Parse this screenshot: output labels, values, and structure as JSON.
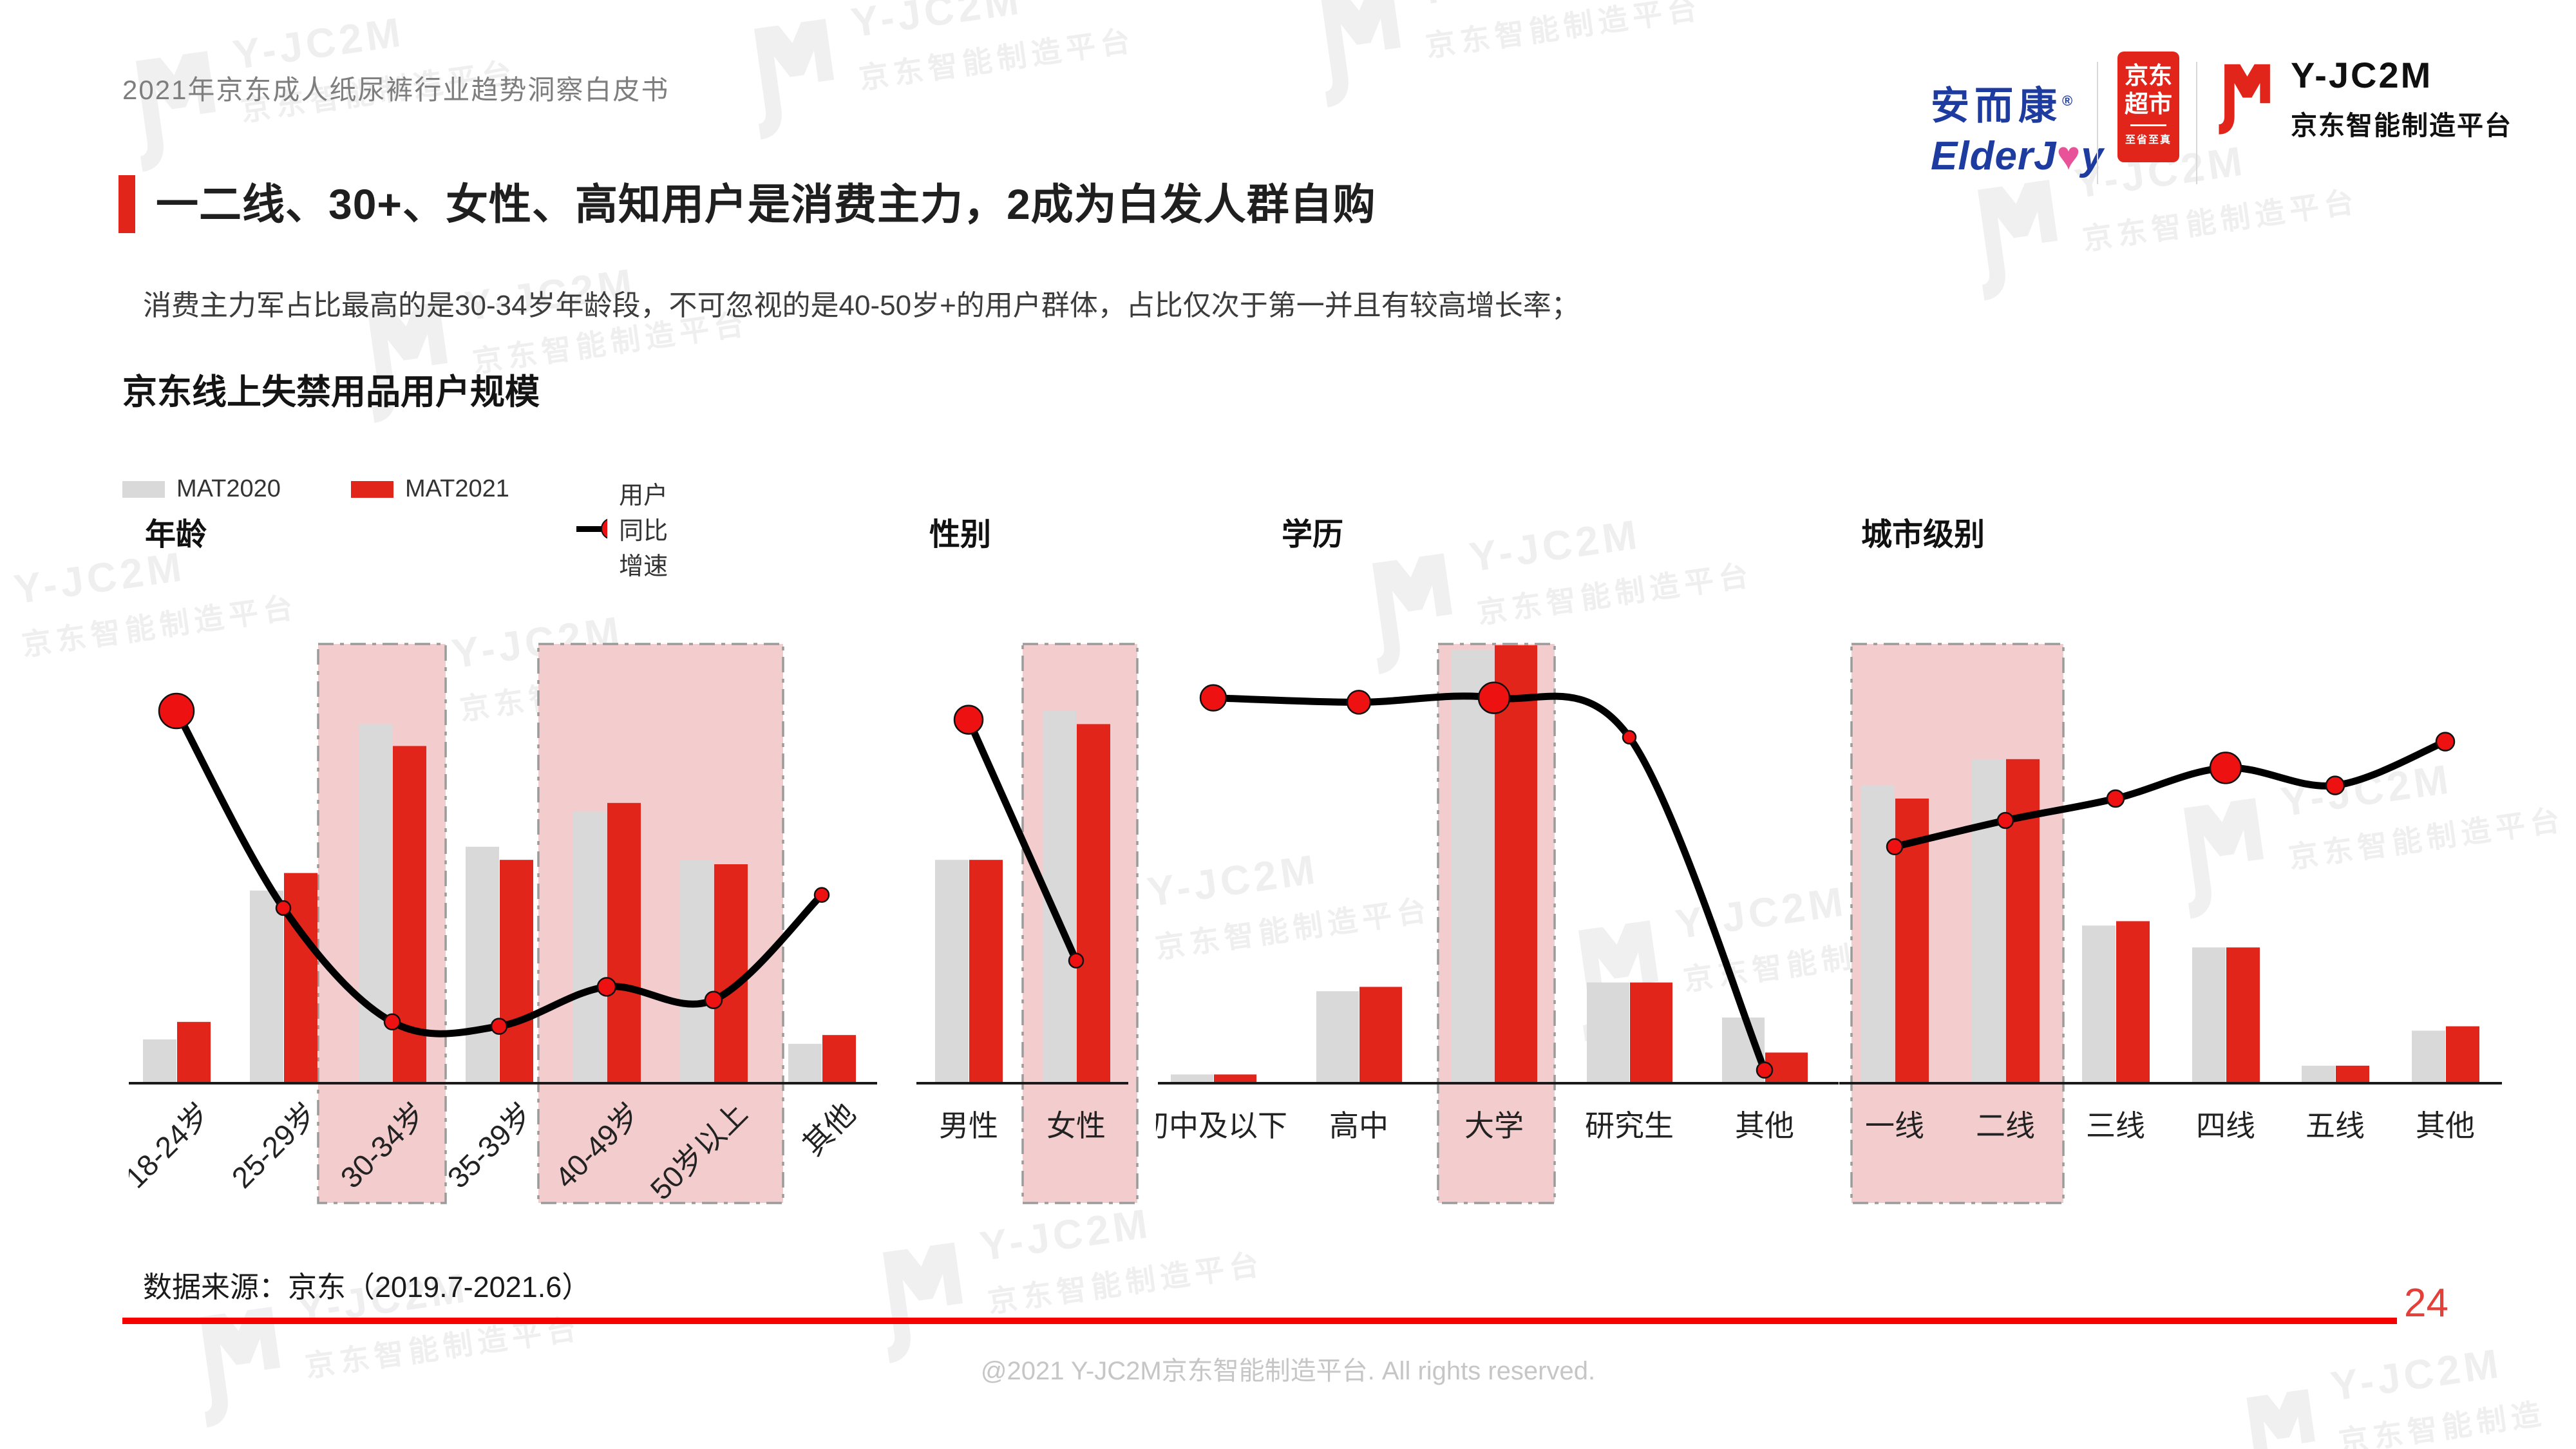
{
  "page": {
    "header": "2021年京东成人纸尿裤行业趋势洞察白皮书",
    "title": "一二线、30+、女性、高知用户是消费主力，2成为白发人群自购",
    "subtitle": "消费主力军占比最高的是30-34岁年龄段，不可忽视的是40-50岁+的用户群体，占比仅次于第一并且有较高增长率；",
    "section_title": "京东线上失禁用品用户规模",
    "source": "数据来源：京东（2019.7-2021.6）",
    "copyright": "@2021 Y-JC2M京东智能制造平台. All rights reserved.",
    "page_number": "24"
  },
  "logos": {
    "elderjoy": {
      "cn": "安而康",
      "reg": "®",
      "en_prefix": "ElderJ",
      "heart": "♥",
      "en_suffix": "y"
    },
    "jd_market": {
      "line1": "京东",
      "line2": "超市",
      "tagline": "至省至真"
    },
    "yjc2m": {
      "name": "Y-JC2M",
      "subtitle": "京东智能制造平台"
    }
  },
  "watermark": {
    "brand": "Y-JC2M",
    "text": "京东智能制造平台"
  },
  "legend": [
    {
      "label": "MAT2020",
      "type": "swatch",
      "color": "#d9d9d9"
    },
    {
      "label": "MAT2021",
      "type": "swatch",
      "color": "#e1251b"
    },
    {
      "label": "用户同比增速",
      "type": "line-dot",
      "line_color": "#000000",
      "dot_color": "#ee1111"
    }
  ],
  "colors": {
    "bar_2020": "#d9d9d9",
    "bar_2021": "#e1251b",
    "growth_line": "#000000",
    "growth_dot": "#ee1111",
    "highlight_band_fill": "#f3cdcd",
    "highlight_band_border": "#9b9b9b",
    "axis": "#1a1a1a",
    "accent_red": "#e1251b"
  },
  "chart_note": "Original figure shows no numeric axis labels; all values are estimated as percent of plot height read from the image.",
  "chart_data": [
    {
      "id": "age",
      "type": "bar+line",
      "title": "年龄",
      "categories": [
        "18-24岁",
        "25-29岁",
        "30-34岁",
        "35-39岁",
        "40-49岁",
        "50岁以上",
        "其他"
      ],
      "highlighted_categories": [
        "30-34岁",
        "40-49岁",
        "50岁以上"
      ],
      "series": [
        {
          "name": "MAT2020",
          "values": [
            10,
            44,
            82,
            54,
            62,
            51,
            9
          ]
        },
        {
          "name": "MAT2021",
          "values": [
            14,
            48,
            77,
            51,
            64,
            50,
            11
          ]
        }
      ],
      "line": {
        "name": "用户同比增速",
        "values": [
          85,
          40,
          14,
          13,
          22,
          19,
          43
        ],
        "marker_radii": [
          27,
          11,
          12,
          12,
          14,
          13,
          11
        ]
      },
      "rotated_labels": true
    },
    {
      "id": "gender",
      "type": "bar+line",
      "title": "性别",
      "categories": [
        "男性",
        "女性"
      ],
      "highlighted_categories": [
        "女性"
      ],
      "series": [
        {
          "name": "MAT2020",
          "values": [
            51,
            85
          ]
        },
        {
          "name": "MAT2021",
          "values": [
            51,
            82
          ]
        }
      ],
      "line": {
        "name": "用户同比增速",
        "values": [
          83,
          28
        ],
        "marker_radii": [
          22,
          11
        ]
      },
      "rotated_labels": false
    },
    {
      "id": "education",
      "type": "bar+line",
      "title": "学历",
      "categories": [
        "初中及以下",
        "高中",
        "大学",
        "研究生",
        "其他"
      ],
      "highlighted_categories": [
        "大学"
      ],
      "series": [
        {
          "name": "MAT2020",
          "values": [
            2,
            21,
            99,
            23,
            15
          ]
        },
        {
          "name": "MAT2021",
          "values": [
            2,
            22,
            100,
            23,
            7
          ]
        }
      ],
      "line": {
        "name": "用户同比增速",
        "values": [
          88,
          87,
          88,
          79,
          3
        ],
        "marker_radii": [
          20,
          18,
          24,
          10,
          12
        ]
      },
      "rotated_labels": false
    },
    {
      "id": "city",
      "type": "bar+line",
      "title": "城市级别",
      "categories": [
        "一线",
        "二线",
        "三线",
        "四线",
        "五线",
        "其他"
      ],
      "highlighted_categories": [
        "一线",
        "二线"
      ],
      "series": [
        {
          "name": "MAT2020",
          "values": [
            68,
            74,
            36,
            31,
            4,
            12
          ]
        },
        {
          "name": "MAT2021",
          "values": [
            65,
            74,
            37,
            31,
            4,
            13
          ]
        }
      ],
      "line": {
        "name": "用户同比增速",
        "values": [
          54,
          60,
          65,
          72,
          68,
          78
        ],
        "marker_radii": [
          12,
          12,
          13,
          24,
          14,
          14
        ]
      },
      "rotated_labels": false
    }
  ]
}
